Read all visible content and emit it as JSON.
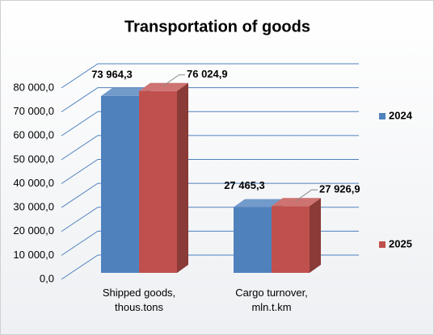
{
  "chart_data": {
    "type": "bar3d",
    "title": "Transportation of goods",
    "categories": [
      "Shipped goods, thous.tons",
      "Cargo turnover, mln.t.km"
    ],
    "series": [
      {
        "name": "2024",
        "color": "#4f81bd",
        "values": [
          73964.3,
          27465.3
        ],
        "value_labels": [
          "73 964,3",
          "27 465,3"
        ]
      },
      {
        "name": "2025",
        "color": "#c0504d",
        "values": [
          76024.9,
          27926.9
        ],
        "value_labels": [
          "76 024,9",
          "27 926,9"
        ]
      }
    ],
    "ylim": [
      0,
      80000
    ],
    "yticks": [
      {
        "value": 0,
        "label": "0,0"
      },
      {
        "value": 10000,
        "label": "10 000,0"
      },
      {
        "value": 20000,
        "label": "20 000,0"
      },
      {
        "value": 30000,
        "label": "30 000,0"
      },
      {
        "value": 40000,
        "label": "40 000,0"
      },
      {
        "value": 50000,
        "label": "50 000,0"
      },
      {
        "value": 60000,
        "label": "60 000,0"
      },
      {
        "value": 70000,
        "label": "70 000,0"
      },
      {
        "value": 80000,
        "label": "80 000,0"
      }
    ],
    "grid": true,
    "legend": "right"
  }
}
